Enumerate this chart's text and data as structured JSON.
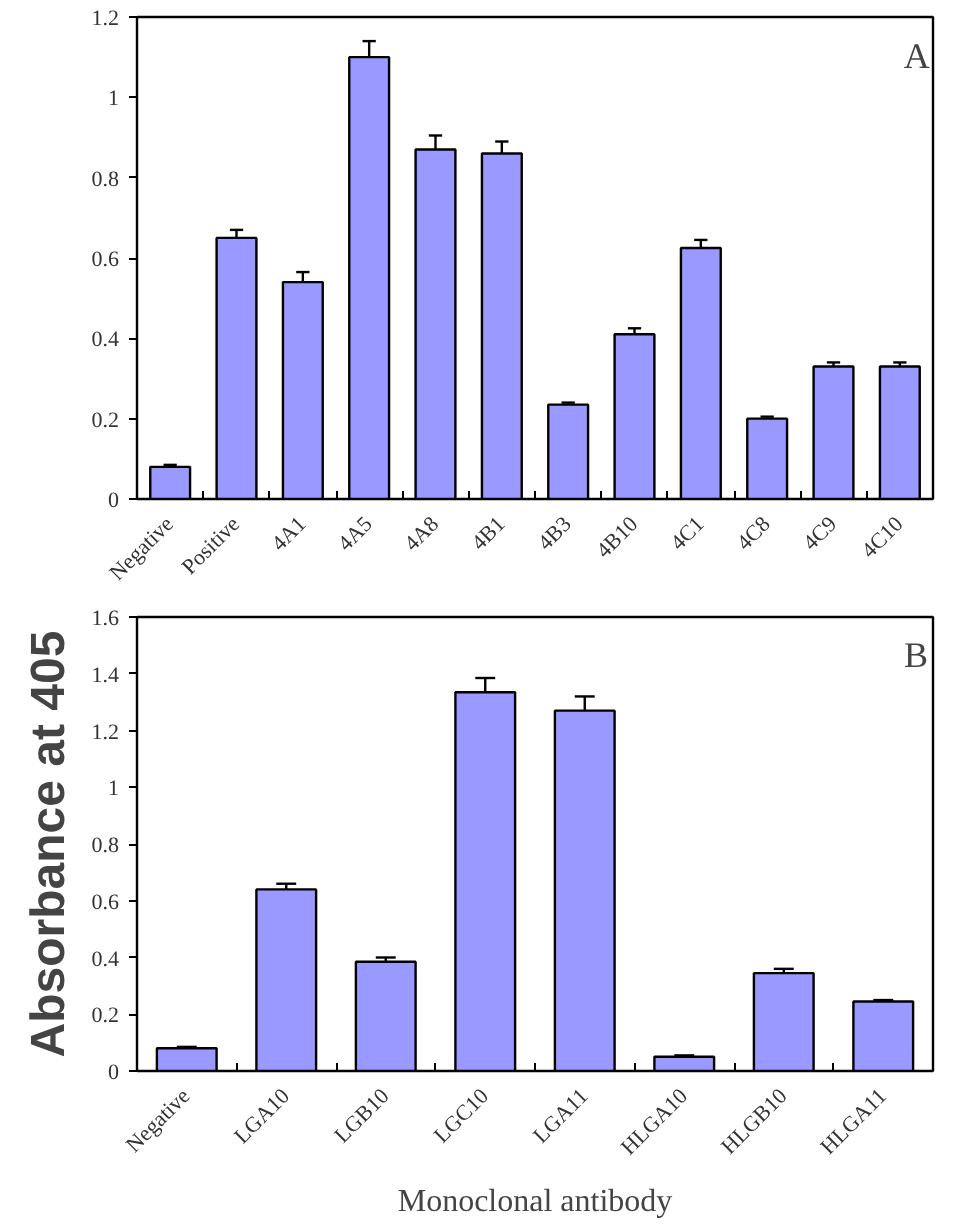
{
  "chart_data": [
    {
      "type": "bar",
      "categories": [
        "Negative",
        "Positive",
        "4A1",
        "4A5",
        "4A8",
        "4B1",
        "4B3",
        "4B10",
        "4C1",
        "4C8",
        "4C9",
        "4C10"
      ],
      "values": [
        0.08,
        0.65,
        0.54,
        1.1,
        0.87,
        0.86,
        0.235,
        0.41,
        0.625,
        0.2,
        0.33,
        0.33
      ],
      "errors": [
        [
          0.08,
          0.085
        ],
        [
          0.65,
          0.67
        ],
        [
          0.54,
          0.565
        ],
        [
          1.1,
          1.14
        ],
        [
          0.87,
          0.905
        ],
        [
          0.86,
          0.89
        ],
        [
          0.235,
          0.24
        ],
        [
          0.41,
          0.425
        ],
        [
          0.625,
          0.645
        ],
        [
          0.2,
          0.205
        ],
        [
          0.33,
          0.34
        ],
        [
          0.33,
          0.34
        ]
      ],
      "color": "#9999ff",
      "ylim": [
        0,
        1.2
      ],
      "yticks": [
        0,
        0.2,
        0.4,
        0.6,
        0.8,
        1,
        1.2
      ],
      "grid": false,
      "annotations": [
        "A"
      ]
    },
    {
      "type": "bar",
      "categories": [
        "Negative",
        "LGA10",
        "LGB10",
        "LGC10",
        "LGA11",
        "HLGA10",
        "HLGB10",
        "HLGA11"
      ],
      "values": [
        0.08,
        0.64,
        0.385,
        1.335,
        1.27,
        0.05,
        0.345,
        0.245
      ],
      "errors": [
        [
          0.08,
          0.085
        ],
        [
          0.64,
          0.66
        ],
        [
          0.385,
          0.4
        ],
        [
          1.335,
          1.385
        ],
        [
          1.27,
          1.32
        ],
        [
          0.05,
          0.055
        ],
        [
          0.345,
          0.36
        ],
        [
          0.245,
          0.25
        ]
      ],
      "color": "#9999ff",
      "ylim": [
        0,
        1.6
      ],
      "yticks": [
        0,
        0.2,
        0.4,
        0.6,
        0.8,
        1,
        1.2,
        1.4,
        1.6
      ],
      "grid": false,
      "ylabel": "Absorbance at 405",
      "xlabel": "Monoclonal antibody",
      "annotations": [
        "B"
      ]
    }
  ]
}
